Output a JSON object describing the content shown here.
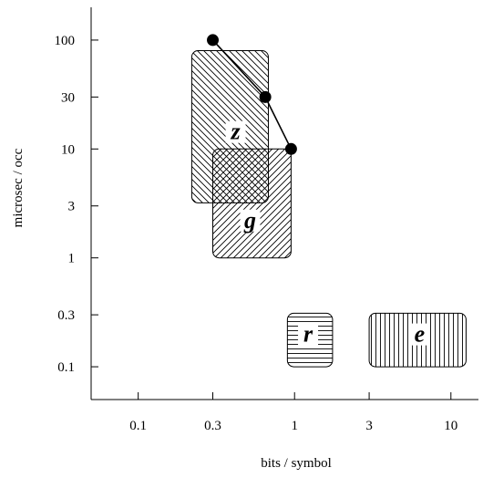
{
  "chart_data": {
    "type": "scatter",
    "title": "",
    "xlabel": "bits / symbol",
    "ylabel": "microsec / occ",
    "x_scale": "log",
    "y_scale": "log",
    "xlim": [
      0.05,
      15
    ],
    "ylim": [
      0.05,
      200
    ],
    "x_ticks": [
      {
        "value": 0.1,
        "label": "0.1"
      },
      {
        "value": 0.3,
        "label": "0.3"
      },
      {
        "value": 1,
        "label": "1"
      },
      {
        "value": 3,
        "label": "3"
      },
      {
        "value": 10,
        "label": "10"
      }
    ],
    "y_ticks": [
      {
        "value": 0.1,
        "label": "0.1"
      },
      {
        "value": 0.3,
        "label": "0.3"
      },
      {
        "value": 1,
        "label": "1"
      },
      {
        "value": 3,
        "label": "3"
      },
      {
        "value": 10,
        "label": "10"
      },
      {
        "value": 30,
        "label": "30"
      },
      {
        "value": 100,
        "label": "100"
      }
    ],
    "grid": false,
    "legend": "none",
    "line_series": {
      "x": [
        0.3,
        0.65,
        0.95
      ],
      "y": [
        100,
        30,
        10
      ]
    },
    "regions": [
      {
        "label": "z",
        "x_range": [
          0.22,
          0.68
        ],
        "y_range": [
          3.2,
          80
        ],
        "hatch": "backslash"
      },
      {
        "label": "g",
        "x_range": [
          0.3,
          0.95
        ],
        "y_range": [
          1.0,
          10.0
        ],
        "hatch": "slash"
      },
      {
        "label": "r",
        "x_range": [
          0.9,
          1.75
        ],
        "y_range": [
          0.1,
          0.31
        ],
        "hatch": "horizontal"
      },
      {
        "label": "e",
        "x_range": [
          3.0,
          12.5
        ],
        "y_range": [
          0.1,
          0.31
        ],
        "hatch": "vertical"
      }
    ]
  }
}
